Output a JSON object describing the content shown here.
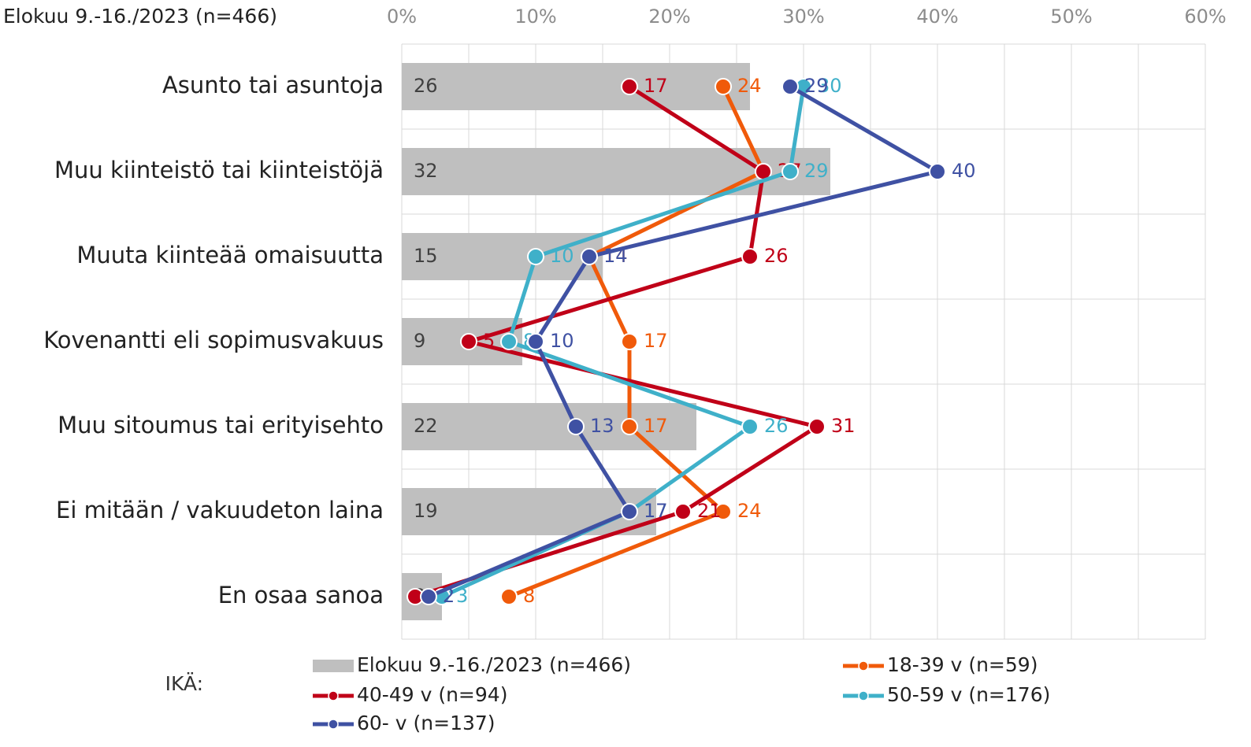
{
  "chart_data": {
    "type": "bar",
    "title": "Elokuu 9.-16./2023 (n=466)",
    "categories": [
      "Asunto tai asuntoja",
      "Muu kiinteistö tai kiinteistöjä",
      "Muuta kiinteää omaisuutta",
      "Kovenantti eli sopimusvakuus",
      "Muu sitoumus tai erityisehto",
      "Ei mitään / vakuudeton laina",
      "En osaa sanoa"
    ],
    "series": [
      {
        "name": "Elokuu 9.-16./2023 (n=466)",
        "type": "bar",
        "color": "#bfbfbf",
        "values": [
          26,
          32,
          15,
          9,
          22,
          19,
          3
        ]
      },
      {
        "name": "18-39 v (n=59)",
        "type": "line",
        "color": "#f05a0a",
        "values": [
          24,
          27,
          14,
          17,
          17,
          24,
          8
        ]
      },
      {
        "name": "40-49 v (n=94)",
        "type": "line",
        "color": "#c00018",
        "values": [
          17,
          27,
          26,
          5,
          31,
          21,
          1
        ]
      },
      {
        "name": "50-59 v (n=176)",
        "type": "line",
        "color": "#3fb0c9",
        "values": [
          30,
          29,
          10,
          8,
          26,
          17,
          3
        ]
      },
      {
        "name": "60- v (n=137)",
        "type": "line",
        "color": "#3f51a3",
        "values": [
          29,
          40,
          14,
          10,
          13,
          17,
          2
        ]
      }
    ],
    "xlim": [
      0,
      60
    ],
    "xticks": [
      {
        "value": 0,
        "label": "0%"
      },
      {
        "value": 10,
        "label": "10%"
      },
      {
        "value": 20,
        "label": "20%"
      },
      {
        "value": 30,
        "label": "30%"
      },
      {
        "value": 40,
        "label": "40%"
      },
      {
        "value": 50,
        "label": "50%"
      },
      {
        "value": 60,
        "label": "60%"
      }
    ],
    "xgrid_minor": [
      5,
      15,
      25,
      35,
      45,
      55
    ],
    "grid": true,
    "legend_title": "IKÄ:",
    "legend_position": "bottom"
  }
}
